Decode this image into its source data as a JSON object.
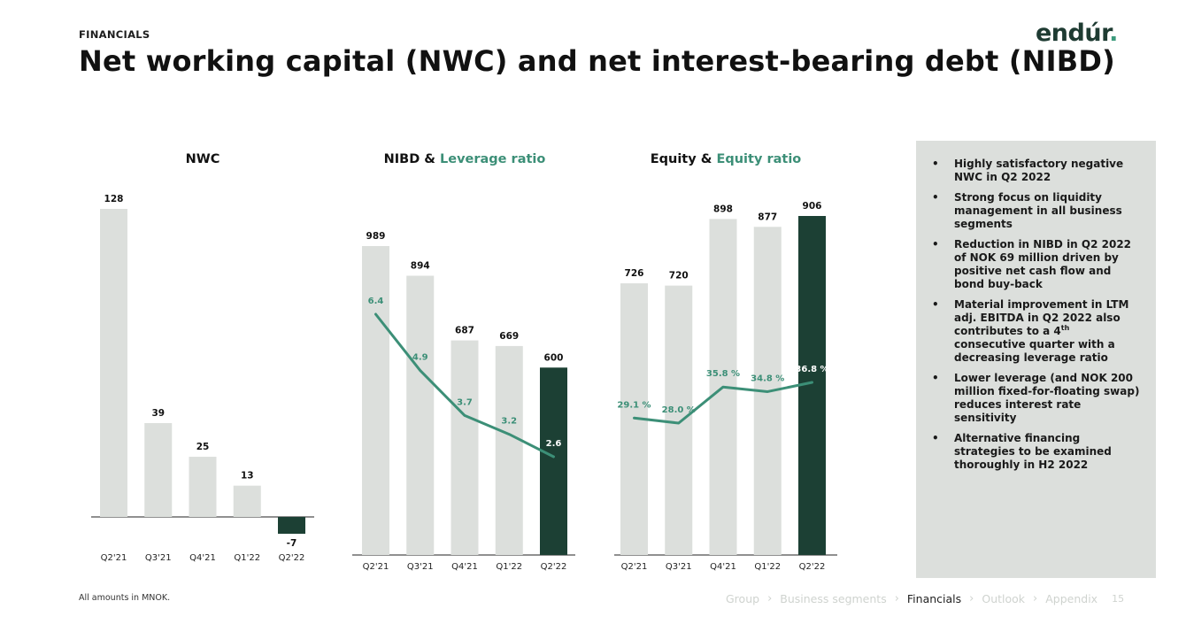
{
  "header": {
    "section": "FINANCIALS",
    "title": "Net working capital (NWC) and net interest-bearing debt (NIBD)",
    "logo_text": "endúr",
    "logo_dot": "."
  },
  "colors": {
    "bar_light": "#dcdfdc",
    "bar_dark": "#1c4034",
    "line_green": "#3c8f77"
  },
  "chart_data": [
    {
      "type": "bar",
      "title": "NWC",
      "categories": [
        "Q2'21",
        "Q3'21",
        "Q4'21",
        "Q1'22",
        "Q2'22"
      ],
      "values": [
        128,
        39,
        25,
        13,
        -7
      ],
      "value_labels": [
        "128",
        "39",
        "25",
        "13",
        "-7"
      ],
      "highlight_index": 4,
      "ylim": [
        -7,
        128
      ]
    },
    {
      "type": "bar",
      "title": "NIBD & ",
      "title_highlight": "Leverage ratio",
      "categories": [
        "Q2'21",
        "Q3'21",
        "Q4'21",
        "Q1'22",
        "Q2'22"
      ],
      "values": [
        989,
        894,
        687,
        669,
        600
      ],
      "value_labels": [
        "989",
        "894",
        "687",
        "669",
        "600"
      ],
      "highlight_index": 4,
      "ylim": [
        0,
        989
      ],
      "line_series": {
        "name": "Leverage ratio",
        "values": [
          6.4,
          4.9,
          3.7,
          3.2,
          2.6
        ],
        "labels": [
          "6.4",
          "4.9",
          "3.7",
          "3.2",
          "2.6"
        ]
      }
    },
    {
      "type": "bar",
      "title": "Equity & ",
      "title_highlight": "Equity ratio",
      "categories": [
        "Q2'21",
        "Q3'21",
        "Q4'21",
        "Q1'22",
        "Q2'22"
      ],
      "values": [
        726,
        720,
        898,
        877,
        906
      ],
      "value_labels": [
        "726",
        "720",
        "898",
        "877",
        "906"
      ],
      "highlight_index": 4,
      "ylim": [
        0,
        906
      ],
      "line_series": {
        "name": "Equity ratio",
        "values": [
          29.1,
          28.0,
          35.8,
          34.8,
          36.8
        ],
        "labels": [
          "29.1 %",
          "28.0 %",
          "35.8 %",
          "34.8 %",
          "36.8 %"
        ]
      }
    }
  ],
  "side_panel": {
    "bullets": [
      {
        "text": "Highly satisfactory negative NWC in Q2 2022"
      },
      {
        "text": "Strong focus on liquidity management in all business segments"
      },
      {
        "text": "Reduction in NIBD in Q2 2022 of NOK 69 million driven by positive net cash flow and bond buy-back"
      },
      {
        "text_before": "Material improvement in LTM adj. EBITDA in Q2 2022 also contributes to a 4",
        "sup": "th",
        "text_after": " consecutive quarter with a decreasing leverage ratio"
      },
      {
        "text": "Lower leverage (and NOK 200 million fixed-for-floating swap) reduces interest rate sensitivity"
      },
      {
        "text": "Alternative financing strategies to be examined thoroughly in H2 2022"
      }
    ]
  },
  "footer": {
    "note": "All amounts in MNOK.",
    "nav": [
      "Group",
      "Business segments",
      "Financials",
      "Outlook",
      "Appendix"
    ],
    "nav_active": "Financials",
    "page_number": "15"
  }
}
